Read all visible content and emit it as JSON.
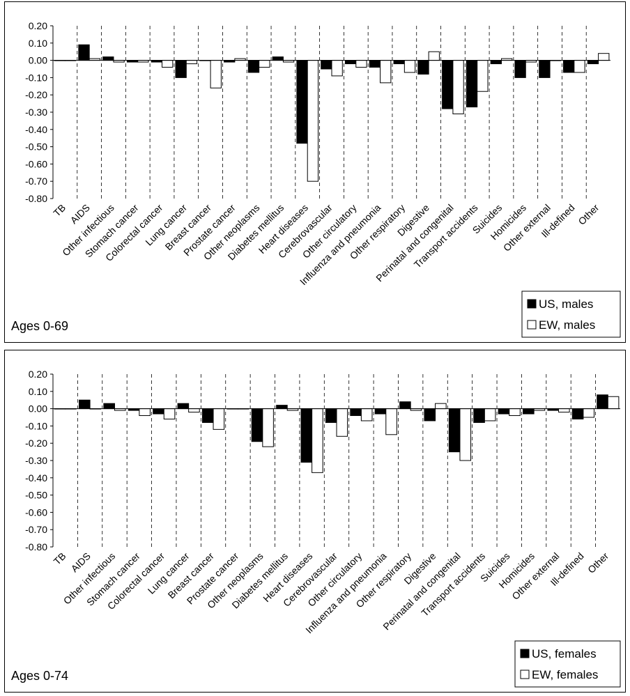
{
  "chart_data": [
    {
      "type": "bar",
      "categories": [
        "TB",
        "AIDS",
        "Other infectious",
        "Stomach cancer",
        "Colorectal cancer",
        "Lung cancer",
        "Breast cancer",
        "Prostate cancer",
        "Other neoplasms",
        "Diabetes mellitus",
        "Heart diseases",
        "Cerebrovascular",
        "Other circulatory",
        "Influenza and pneumonia",
        "Other respiratory",
        "Digestive",
        "Perinatal and congenital",
        "Transport accidents",
        "Suicides",
        "Homicides",
        "Other external",
        "Ill-defined",
        "Other"
      ],
      "series": [
        {
          "name": "US, males",
          "color": "#000000",
          "values": [
            0.0,
            0.09,
            0.02,
            -0.01,
            -0.01,
            -0.1,
            0.0,
            -0.01,
            -0.07,
            0.02,
            -0.48,
            -0.05,
            -0.02,
            -0.04,
            -0.02,
            -0.08,
            -0.28,
            -0.27,
            -0.02,
            -0.1,
            -0.1,
            -0.07,
            -0.02
          ]
        },
        {
          "name": "EW, males",
          "color": "#ffffff",
          "values": [
            0.0,
            0.01,
            -0.01,
            -0.01,
            -0.04,
            -0.02,
            -0.16,
            0.01,
            -0.04,
            -0.01,
            -0.7,
            -0.09,
            -0.04,
            -0.13,
            -0.07,
            0.05,
            -0.31,
            -0.18,
            0.01,
            -0.01,
            0.0,
            -0.07,
            0.04
          ]
        }
      ],
      "ylim": [
        -0.8,
        0.2
      ],
      "yticks": [
        "0.20",
        "0.10",
        "0.00",
        "-0.10",
        "-0.20",
        "-0.30",
        "-0.40",
        "-0.50",
        "-0.60",
        "-0.70",
        "-0.80"
      ],
      "annotation": "Ages 0-69",
      "legend_position": "bottom-right",
      "grid": "dashed vertical"
    },
    {
      "type": "bar",
      "categories": [
        "TB",
        "AIDS",
        "Other infectious",
        "Stomach cancer",
        "Colorectal cancer",
        "Lung cancer",
        "Breast cancer",
        "Prostate cancer",
        "Other neoplasms",
        "Diabetes mellitus",
        "Heart diseases",
        "Cerebrovascular",
        "Other circulatory",
        "Influenza and pneumonia",
        "Other respiratory",
        "Digestive",
        "Perinatal and congenital",
        "Transport accidents",
        "Suicides",
        "Homicides",
        "Other external",
        "Ill-defined",
        "Other"
      ],
      "series": [
        {
          "name": "US, females",
          "color": "#000000",
          "values": [
            0.0,
            0.05,
            0.03,
            -0.01,
            -0.03,
            0.03,
            -0.08,
            0.0,
            -0.19,
            0.02,
            -0.31,
            -0.08,
            -0.04,
            -0.03,
            0.04,
            -0.07,
            -0.25,
            -0.08,
            -0.03,
            -0.03,
            -0.01,
            -0.06,
            0.08
          ]
        },
        {
          "name": "EW, females",
          "color": "#ffffff",
          "values": [
            0.0,
            0.0,
            -0.01,
            -0.04,
            -0.06,
            -0.02,
            -0.12,
            0.0,
            -0.22,
            -0.01,
            -0.37,
            -0.16,
            -0.07,
            -0.15,
            -0.01,
            0.03,
            -0.3,
            -0.07,
            -0.04,
            -0.01,
            -0.02,
            -0.05,
            0.07
          ]
        }
      ],
      "ylim": [
        -0.8,
        0.2
      ],
      "yticks": [
        "0.20",
        "0.10",
        "0.00",
        "-0.10",
        "-0.20",
        "-0.30",
        "-0.40",
        "-0.50",
        "-0.60",
        "-0.70",
        "-0.80"
      ],
      "annotation": "Ages 0-74",
      "legend_position": "bottom-right",
      "grid": "dashed vertical"
    }
  ]
}
